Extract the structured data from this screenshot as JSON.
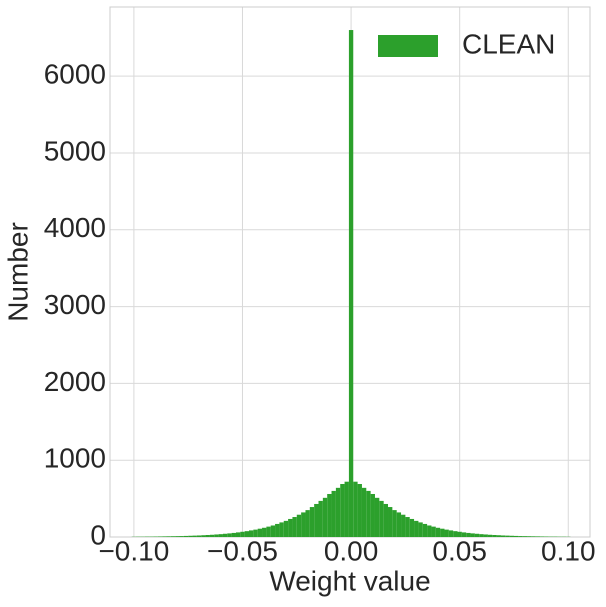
{
  "chart_data": {
    "type": "histogram",
    "xlabel": "Weight value",
    "ylabel": "Number",
    "series": [
      {
        "name": "CLEAN",
        "color": "#2ca02c",
        "bins": [
          -0.101,
          -0.099,
          -0.097,
          -0.095,
          -0.093,
          -0.091,
          -0.089,
          -0.087,
          -0.085,
          -0.083,
          -0.081,
          -0.079,
          -0.077,
          -0.075,
          -0.073,
          -0.071,
          -0.069,
          -0.067,
          -0.065,
          -0.063,
          -0.061,
          -0.059,
          -0.057,
          -0.055,
          -0.053,
          -0.051,
          -0.049,
          -0.047,
          -0.045,
          -0.043,
          -0.041,
          -0.039,
          -0.037,
          -0.035,
          -0.033,
          -0.031,
          -0.029,
          -0.027,
          -0.025,
          -0.023,
          -0.021,
          -0.019,
          -0.017,
          -0.015,
          -0.013,
          -0.011,
          -0.009,
          -0.007,
          -0.005,
          -0.003,
          -0.001,
          0.001,
          0.003,
          0.005,
          0.007,
          0.009,
          0.011,
          0.013,
          0.015,
          0.017,
          0.019,
          0.021,
          0.023,
          0.025,
          0.027,
          0.029,
          0.031,
          0.033,
          0.035,
          0.037,
          0.039,
          0.041,
          0.043,
          0.045,
          0.047,
          0.049,
          0.051,
          0.053,
          0.055,
          0.057,
          0.059,
          0.061,
          0.063,
          0.065,
          0.067,
          0.069,
          0.071,
          0.073,
          0.075,
          0.077,
          0.079,
          0.081,
          0.083,
          0.085,
          0.087,
          0.089,
          0.091,
          0.093,
          0.095,
          0.097,
          0.099,
          0.101
        ],
        "values": [
          3,
          4,
          4,
          5,
          5,
          6,
          7,
          8,
          9,
          10,
          11,
          12,
          14,
          16,
          18,
          20,
          23,
          26,
          29,
          33,
          37,
          42,
          47,
          53,
          60,
          68,
          76,
          86,
          96,
          108,
          120,
          135,
          150,
          170,
          190,
          210,
          235,
          260,
          290,
          320,
          350,
          390,
          430,
          470,
          510,
          560,
          600,
          640,
          690,
          720,
          6600,
          720,
          690,
          640,
          600,
          560,
          510,
          470,
          430,
          390,
          350,
          320,
          290,
          260,
          235,
          210,
          190,
          170,
          150,
          135,
          120,
          108,
          96,
          86,
          76,
          68,
          60,
          53,
          47,
          42,
          37,
          33,
          29,
          26,
          23,
          20,
          18,
          16,
          14,
          12,
          11,
          10,
          9,
          8,
          7,
          6,
          5,
          5,
          4,
          4,
          3
        ]
      }
    ],
    "xlim": [
      -0.111,
      0.11
    ],
    "xticks": [
      {
        "value": -0.1,
        "label": "−0.10"
      },
      {
        "value": -0.05,
        "label": "−0.05"
      },
      {
        "value": 0,
        "label": "0.00"
      },
      {
        "value": 0.05,
        "label": "0.05"
      },
      {
        "value": 0.1,
        "label": "0.10"
      }
    ],
    "ylim": [
      0,
      6900
    ],
    "yticks": [
      0,
      1000,
      2000,
      3000,
      4000,
      5000,
      6000
    ],
    "grid": true,
    "legend": "upper right"
  }
}
